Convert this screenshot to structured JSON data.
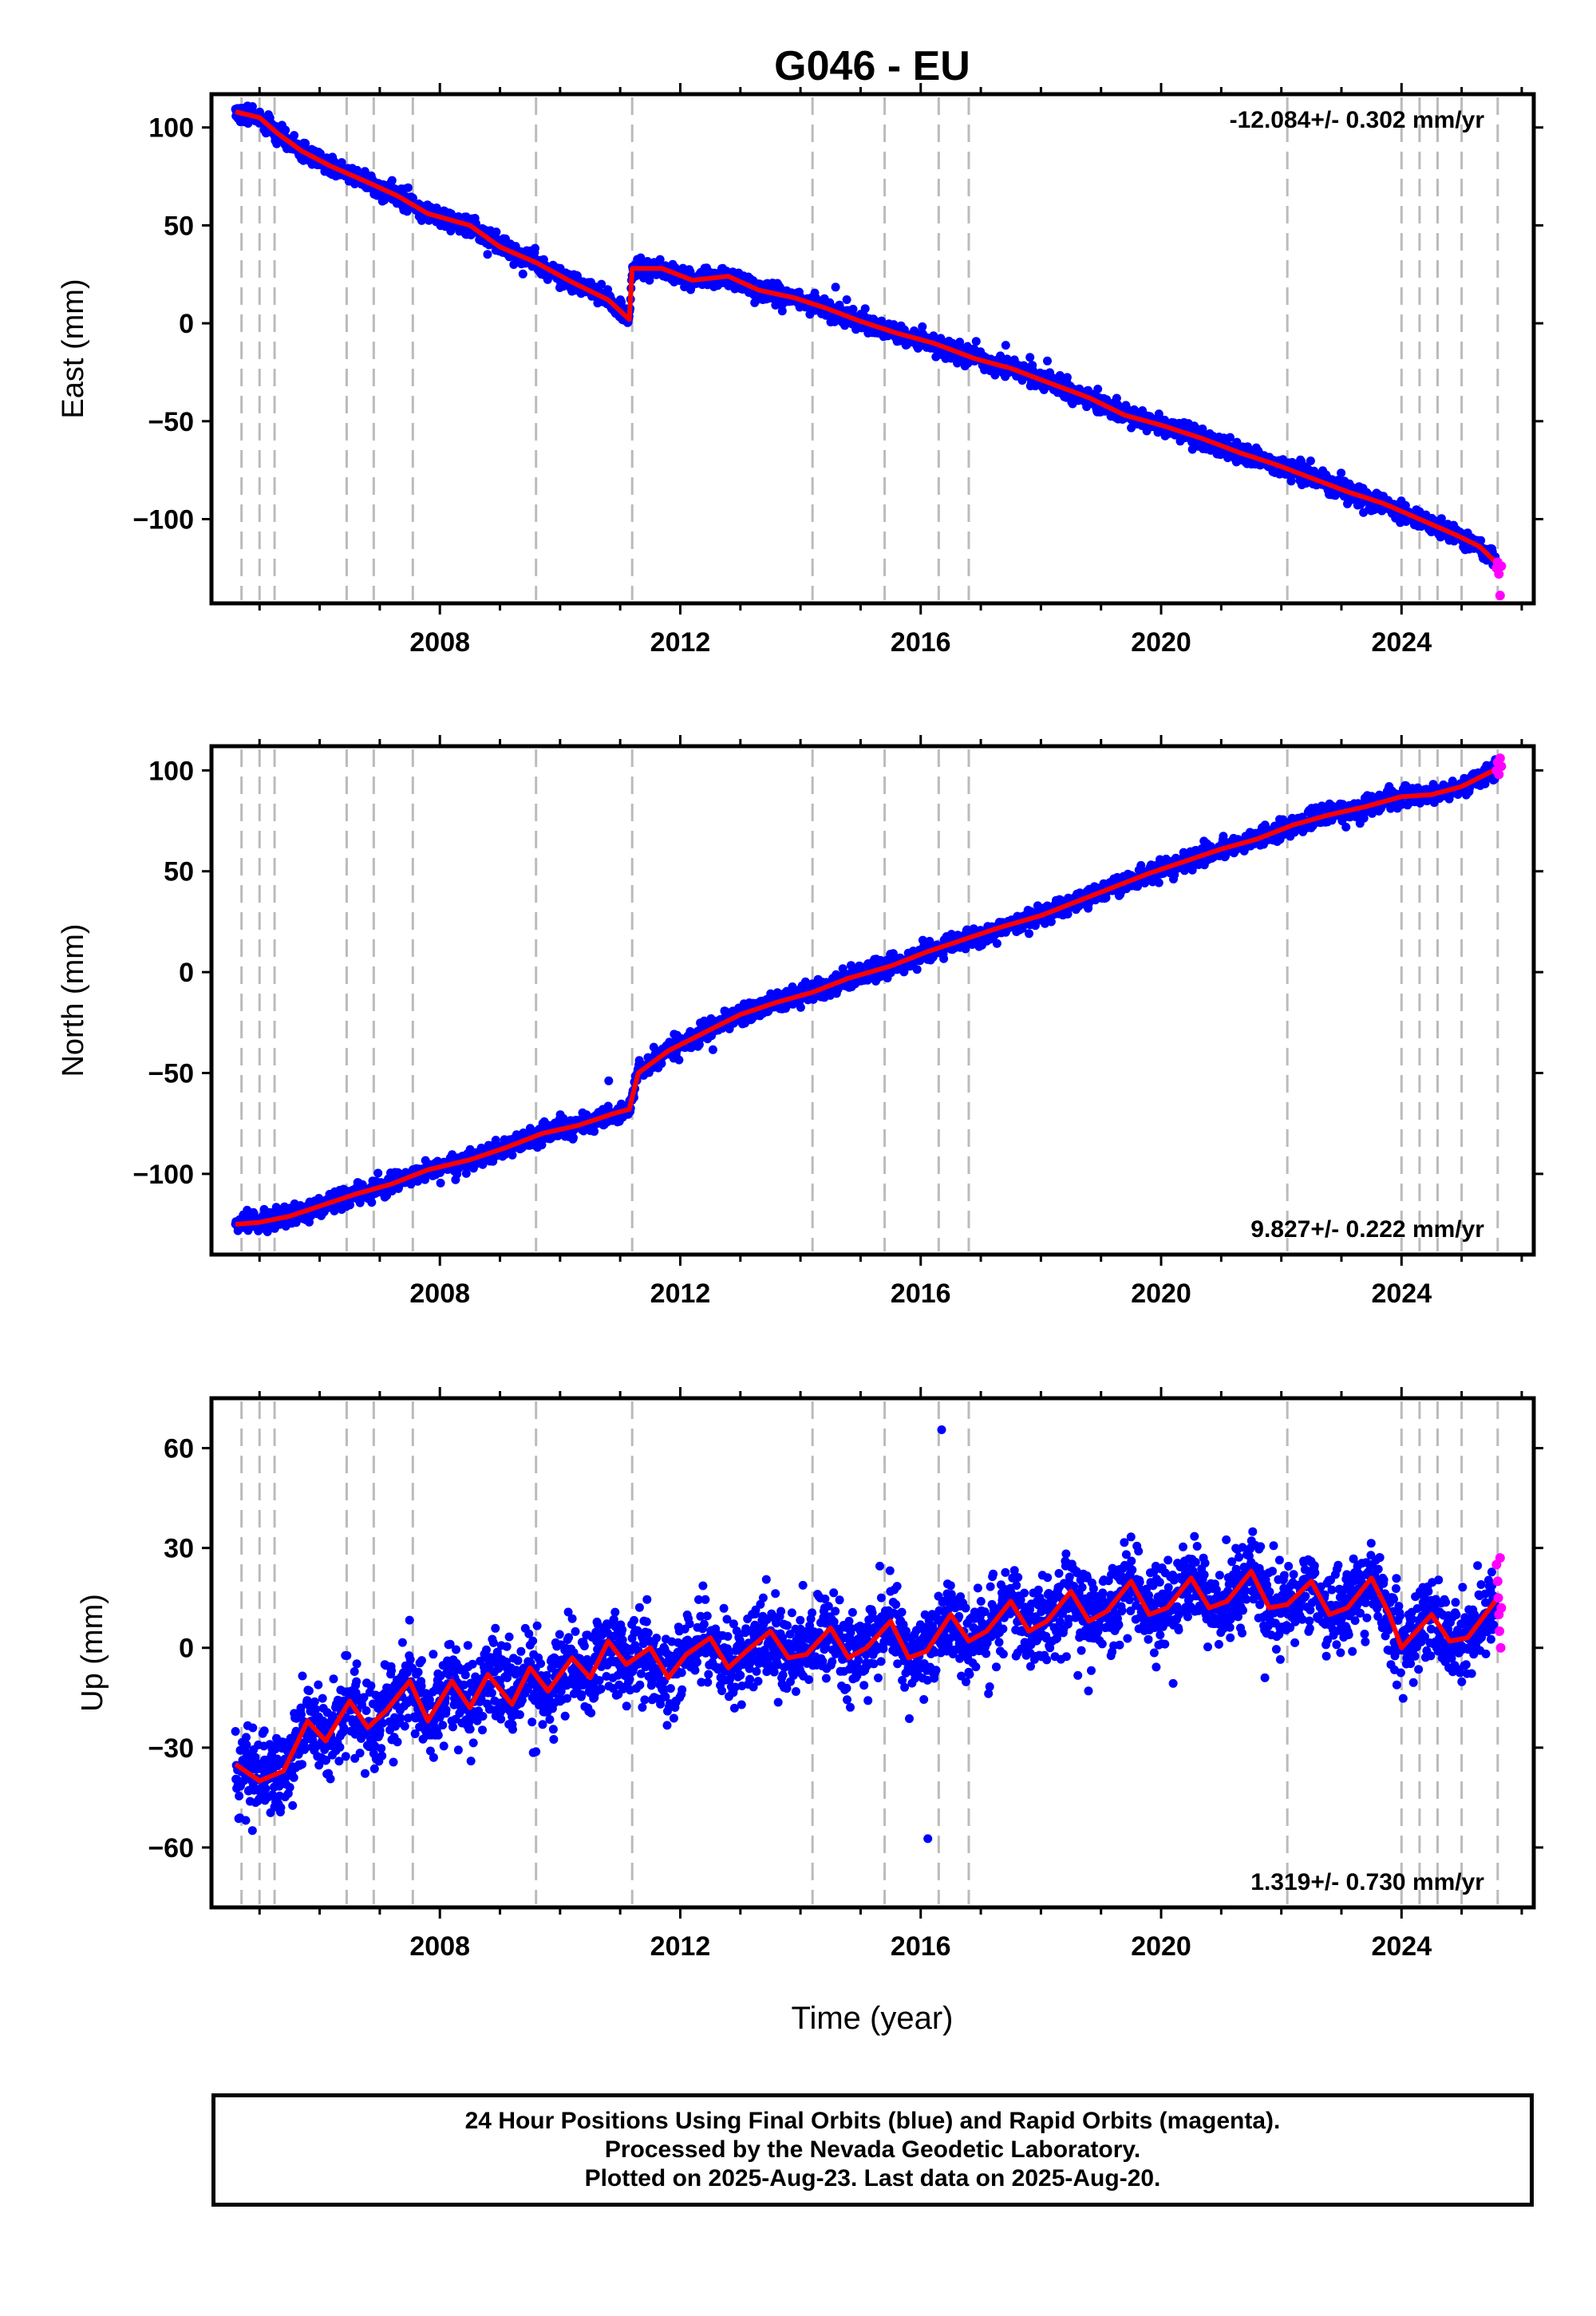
{
  "title": "G046 - EU",
  "colors": {
    "final_orbits": "#0000ff",
    "rapid_orbits": "#ff00ff",
    "model": "#ff0000",
    "event_lines": "#bbbbbb",
    "frame": "#000000"
  },
  "footer": {
    "line1": "24 Hour Positions Using Final Orbits (blue) and Rapid Orbits (magenta).",
    "line2": "Processed by the Nevada Geodetic Laboratory.",
    "line3": "Plotted on 2025-Aug-23. Last data on 2025-Aug-20."
  },
  "chart_data": [
    {
      "type": "scatter",
      "ylabel": "East (mm)",
      "xlabel": "",
      "rate_label": "-12.084+/- 0.302 mm/yr",
      "rate_position": "top-right",
      "xlim": [
        2004.2,
        2026.2
      ],
      "ylim": [
        -143,
        117
      ],
      "xticks": [
        2008,
        2012,
        2016,
        2020,
        2024
      ],
      "yticks": [
        100,
        50,
        0,
        -50,
        -100
      ],
      "ytick_labels": [
        "100",
        "50",
        "0",
        "−50",
        "−100"
      ],
      "event_lines": [
        2004.7,
        2005.0,
        2005.25,
        2006.45,
        2006.9,
        2007.55,
        2009.6,
        2011.2,
        2014.2,
        2015.4,
        2016.3,
        2016.8,
        2022.1,
        2024.0,
        2024.3,
        2024.6,
        2025.0,
        2025.6
      ],
      "model_line": {
        "x": [
          2004.6,
          2005.0,
          2005.3,
          2005.7,
          2006.2,
          2006.8,
          2007.3,
          2007.8,
          2008.5,
          2009.0,
          2009.6,
          2010.2,
          2010.8,
          2011.15,
          2011.2,
          2011.7,
          2012.2,
          2012.8,
          2013.3,
          2013.9,
          2014.4,
          2015.0,
          2015.6,
          2016.2,
          2016.9,
          2017.5,
          2018.1,
          2018.8,
          2019.4,
          2020.0,
          2020.7,
          2021.3,
          2021.9,
          2022.5,
          2023.1,
          2023.7,
          2024.3,
          2024.9,
          2025.3,
          2025.6
        ],
        "y": [
          108,
          105,
          97,
          88,
          80,
          72,
          65,
          56,
          50,
          39,
          31,
          21,
          12,
          2,
          28,
          28,
          22,
          24,
          17,
          13,
          8,
          1,
          -5,
          -10,
          -18,
          -23,
          -30,
          -38,
          -47,
          -52,
          -59,
          -66,
          -72,
          -79,
          -86,
          -92,
          -100,
          -108,
          -114,
          -123
        ]
      },
      "rapid_points": {
        "x": [
          2025.58,
          2025.6,
          2025.62,
          2025.64,
          2025.66
        ],
        "y": [
          -125,
          -122,
          -128,
          -139,
          -124
        ]
      }
    },
    {
      "type": "scatter",
      "ylabel": "North (mm)",
      "xlabel": "",
      "rate_label": "9.827+/- 0.222 mm/yr",
      "rate_position": "bottom-right",
      "xlim": [
        2004.2,
        2026.2
      ],
      "ylim": [
        -140,
        112
      ],
      "xticks": [
        2008,
        2012,
        2016,
        2020,
        2024
      ],
      "yticks": [
        100,
        50,
        0,
        -50,
        -100
      ],
      "ytick_labels": [
        "100",
        "50",
        "0",
        "−50",
        "−100"
      ],
      "event_lines": [
        2004.7,
        2005.0,
        2005.25,
        2006.45,
        2006.9,
        2007.55,
        2009.6,
        2011.2,
        2014.2,
        2015.4,
        2016.3,
        2016.8,
        2022.1,
        2024.0,
        2024.3,
        2024.6,
        2025.0,
        2025.6
      ],
      "model_line": {
        "x": [
          2004.6,
          2005.0,
          2005.5,
          2006.0,
          2006.6,
          2007.2,
          2007.8,
          2008.5,
          2009.1,
          2009.7,
          2010.3,
          2010.9,
          2011.15,
          2011.3,
          2011.8,
          2012.4,
          2013.0,
          2013.6,
          2014.2,
          2014.8,
          2015.5,
          2016.1,
          2016.7,
          2017.3,
          2018.0,
          2018.6,
          2019.2,
          2019.8,
          2020.4,
          2021.0,
          2021.6,
          2022.2,
          2022.8,
          2023.4,
          2024.0,
          2024.5,
          2025.0,
          2025.6
        ],
        "y": [
          -125,
          -124,
          -121,
          -116,
          -110,
          -105,
          -98,
          -93,
          -87,
          -80,
          -76,
          -70,
          -68,
          -50,
          -39,
          -30,
          -21,
          -15,
          -10,
          -3,
          3,
          10,
          16,
          22,
          28,
          35,
          42,
          49,
          55,
          61,
          66,
          73,
          78,
          82,
          87,
          88,
          92,
          101
        ]
      },
      "rapid_points": {
        "x": [
          2025.58,
          2025.6,
          2025.62,
          2025.64,
          2025.66
        ],
        "y": [
          100,
          104,
          98,
          106,
          102
        ]
      }
    },
    {
      "type": "scatter",
      "ylabel": "Up (mm)",
      "xlabel": "Time (year)",
      "rate_label": "1.319+/- 0.730 mm/yr",
      "rate_position": "bottom-right",
      "xlim": [
        2004.2,
        2026.2
      ],
      "ylim": [
        -78,
        75
      ],
      "xticks": [
        2008,
        2012,
        2016,
        2020,
        2024
      ],
      "yticks": [
        60,
        30,
        0,
        -30,
        -60
      ],
      "ytick_labels": [
        "60",
        "30",
        "0",
        "−30",
        "−60"
      ],
      "event_lines": [
        2004.7,
        2005.0,
        2005.25,
        2006.45,
        2006.9,
        2007.55,
        2009.6,
        2011.2,
        2014.2,
        2015.4,
        2016.3,
        2016.8,
        2022.1,
        2024.0,
        2024.3,
        2024.6,
        2025.0,
        2025.6
      ],
      "model_line": {
        "x": [
          2004.6,
          2005.0,
          2005.4,
          2005.8,
          2006.1,
          2006.5,
          2006.8,
          2007.1,
          2007.5,
          2007.8,
          2008.2,
          2008.5,
          2008.8,
          2009.2,
          2009.5,
          2009.8,
          2010.2,
          2010.5,
          2010.8,
          2011.1,
          2011.5,
          2011.8,
          2012.1,
          2012.5,
          2012.8,
          2013.1,
          2013.5,
          2013.8,
          2014.1,
          2014.5,
          2014.8,
          2015.1,
          2015.5,
          2015.8,
          2016.1,
          2016.5,
          2016.8,
          2017.1,
          2017.5,
          2017.8,
          2018.1,
          2018.5,
          2018.8,
          2019.1,
          2019.5,
          2019.8,
          2020.1,
          2020.5,
          2020.8,
          2021.1,
          2021.5,
          2021.8,
          2022.1,
          2022.5,
          2022.8,
          2023.1,
          2023.5,
          2023.8,
          2024.0,
          2024.5,
          2024.8,
          2025.1,
          2025.6
        ],
        "y": [
          -35,
          -40,
          -37,
          -22,
          -28,
          -16,
          -24,
          -19,
          -10,
          -22,
          -10,
          -18,
          -8,
          -17,
          -6,
          -13,
          -3,
          -9,
          2,
          -5,
          0,
          -9,
          -2,
          3,
          -6,
          -1,
          5,
          -3,
          -2,
          6,
          -3,
          0,
          8,
          -3,
          -1,
          10,
          2,
          5,
          14,
          5,
          8,
          17,
          8,
          11,
          20,
          10,
          12,
          21,
          12,
          14,
          23,
          12,
          13,
          20,
          10,
          12,
          21,
          10,
          0,
          10,
          2,
          3,
          15
        ]
      },
      "rapid_points": {
        "x": [
          2025.58,
          2025.6,
          2025.61,
          2025.62,
          2025.63,
          2025.64,
          2025.65,
          2025.66
        ],
        "y": [
          25,
          20,
          15,
          10,
          5,
          27,
          0,
          12
        ]
      }
    }
  ]
}
